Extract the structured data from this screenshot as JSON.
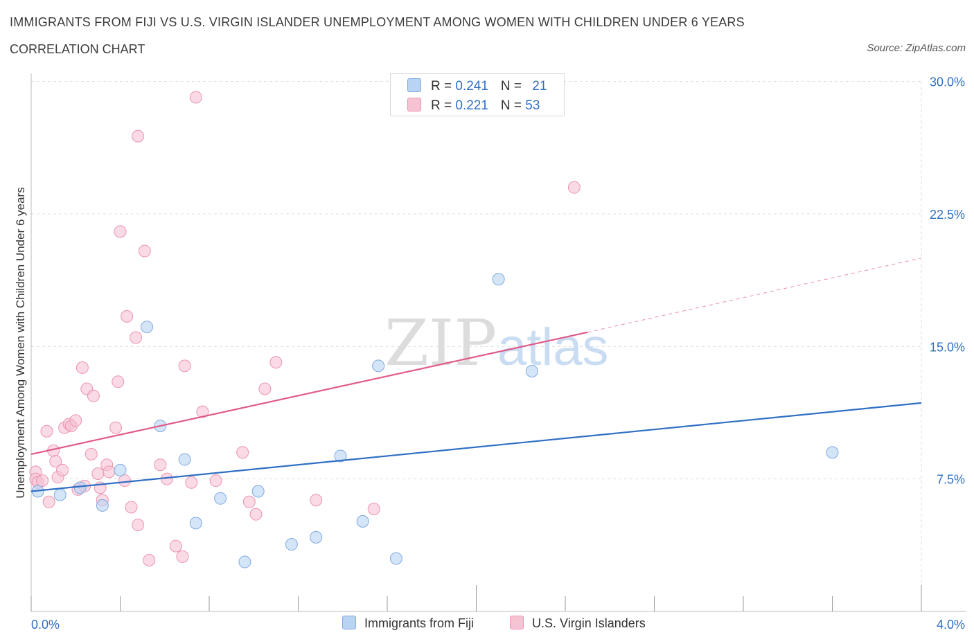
{
  "header": {
    "title": "IMMIGRANTS FROM FIJI VS U.S. VIRGIN ISLANDER UNEMPLOYMENT AMONG WOMEN WITH CHILDREN UNDER 6 YEARS",
    "subtitle": "CORRELATION CHART",
    "source": "Source: ZipAtlas.com"
  },
  "watermark": {
    "zip": "ZIP",
    "atlas": "atlas"
  },
  "legend": {
    "rows": [
      {
        "r_label": "R = ",
        "r_value": "0.241",
        "n_label": "N = ",
        "n_value": "21"
      },
      {
        "r_label": "R = ",
        "r_value": "0.221",
        "n_label": "N = ",
        "n_value": "53"
      }
    ]
  },
  "bottom_legend": [
    "Immigrants from Fiji",
    "U.S. Virgin Islanders"
  ],
  "colors": {
    "fiji_fill": "#b9d3f3",
    "fiji_stroke": "#7fa9e0",
    "fiji_line": "#2f6fc4",
    "vi_fill": "#f6c3d3",
    "vi_stroke": "#eb93b0",
    "vi_line": "#e05a8a",
    "axis_label": "#2f6fc4",
    "grid": "#dedede"
  },
  "chart_data": {
    "type": "scatter",
    "title": "IMMIGRANTS FROM FIJI VS U.S. VIRGIN ISLANDER UNEMPLOYMENT AMONG WOMEN WITH CHILDREN UNDER 6 YEARS",
    "xlabel": "",
    "ylabel": "Unemployment Among Women with Children Under 6 years",
    "xlim": [
      0,
      4.0
    ],
    "ylim": [
      0,
      30.0
    ],
    "x_tick_labels": [
      "0.0%",
      "4.0%"
    ],
    "y_ticks": [
      7.5,
      15.0,
      22.5,
      30.0
    ],
    "y_tick_labels": [
      "7.5%",
      "15.0%",
      "22.5%",
      "30.0%"
    ],
    "grid": true,
    "legend_position": "top-center",
    "series": [
      {
        "name": "Immigrants from Fiji",
        "R": 0.241,
        "N": 21,
        "trend": {
          "x0": 0.0,
          "y0": 6.8,
          "x1": 4.0,
          "y1": 11.8
        },
        "points": [
          [
            0.03,
            6.8
          ],
          [
            0.13,
            6.6
          ],
          [
            0.22,
            7.0
          ],
          [
            0.32,
            6.0
          ],
          [
            0.4,
            8.0
          ],
          [
            0.52,
            16.1
          ],
          [
            0.58,
            10.5
          ],
          [
            0.69,
            8.6
          ],
          [
            0.74,
            5.0
          ],
          [
            0.85,
            6.4
          ],
          [
            0.96,
            2.8
          ],
          [
            1.02,
            6.8
          ],
          [
            1.17,
            3.8
          ],
          [
            1.28,
            4.2
          ],
          [
            1.39,
            8.8
          ],
          [
            1.49,
            5.1
          ],
          [
            1.56,
            13.9
          ],
          [
            1.64,
            3.0
          ],
          [
            2.1,
            18.8
          ],
          [
            2.25,
            13.6
          ],
          [
            3.6,
            9.0
          ]
        ]
      },
      {
        "name": "U.S. Virgin Islanders",
        "R": 0.221,
        "N": 53,
        "trend": {
          "x0": 0.0,
          "y0": 8.9,
          "x1": 2.5,
          "y1": 15.8
        },
        "trend_dashed": {
          "x0": 2.5,
          "y0": 15.8,
          "x1": 4.0,
          "y1": 20.0
        },
        "points": [
          [
            0.02,
            7.9
          ],
          [
            0.02,
            7.5
          ],
          [
            0.03,
            7.3
          ],
          [
            0.05,
            7.4
          ],
          [
            0.07,
            10.2
          ],
          [
            0.08,
            6.2
          ],
          [
            0.1,
            9.1
          ],
          [
            0.11,
            8.5
          ],
          [
            0.12,
            7.6
          ],
          [
            0.14,
            8.0
          ],
          [
            0.15,
            10.4
          ],
          [
            0.17,
            10.6
          ],
          [
            0.18,
            10.5
          ],
          [
            0.2,
            10.8
          ],
          [
            0.21,
            6.9
          ],
          [
            0.23,
            13.8
          ],
          [
            0.24,
            7.1
          ],
          [
            0.25,
            12.6
          ],
          [
            0.27,
            8.9
          ],
          [
            0.28,
            12.2
          ],
          [
            0.3,
            7.8
          ],
          [
            0.31,
            7.0
          ],
          [
            0.32,
            6.3
          ],
          [
            0.34,
            8.3
          ],
          [
            0.35,
            7.9
          ],
          [
            0.38,
            10.4
          ],
          [
            0.39,
            13.0
          ],
          [
            0.4,
            21.5
          ],
          [
            0.42,
            7.4
          ],
          [
            0.43,
            16.7
          ],
          [
            0.45,
            5.9
          ],
          [
            0.47,
            15.5
          ],
          [
            0.48,
            4.9
          ],
          [
            0.48,
            26.9
          ],
          [
            0.51,
            20.4
          ],
          [
            0.53,
            2.9
          ],
          [
            0.58,
            8.3
          ],
          [
            0.61,
            7.5
          ],
          [
            0.65,
            3.7
          ],
          [
            0.68,
            3.1
          ],
          [
            0.69,
            13.9
          ],
          [
            0.72,
            7.3
          ],
          [
            0.74,
            29.1
          ],
          [
            0.77,
            11.3
          ],
          [
            0.83,
            7.4
          ],
          [
            0.95,
            9.0
          ],
          [
            0.98,
            6.2
          ],
          [
            1.01,
            5.5
          ],
          [
            1.05,
            12.6
          ],
          [
            1.1,
            14.1
          ],
          [
            1.28,
            6.3
          ],
          [
            1.54,
            5.8
          ],
          [
            2.44,
            24.0
          ]
        ]
      }
    ]
  }
}
